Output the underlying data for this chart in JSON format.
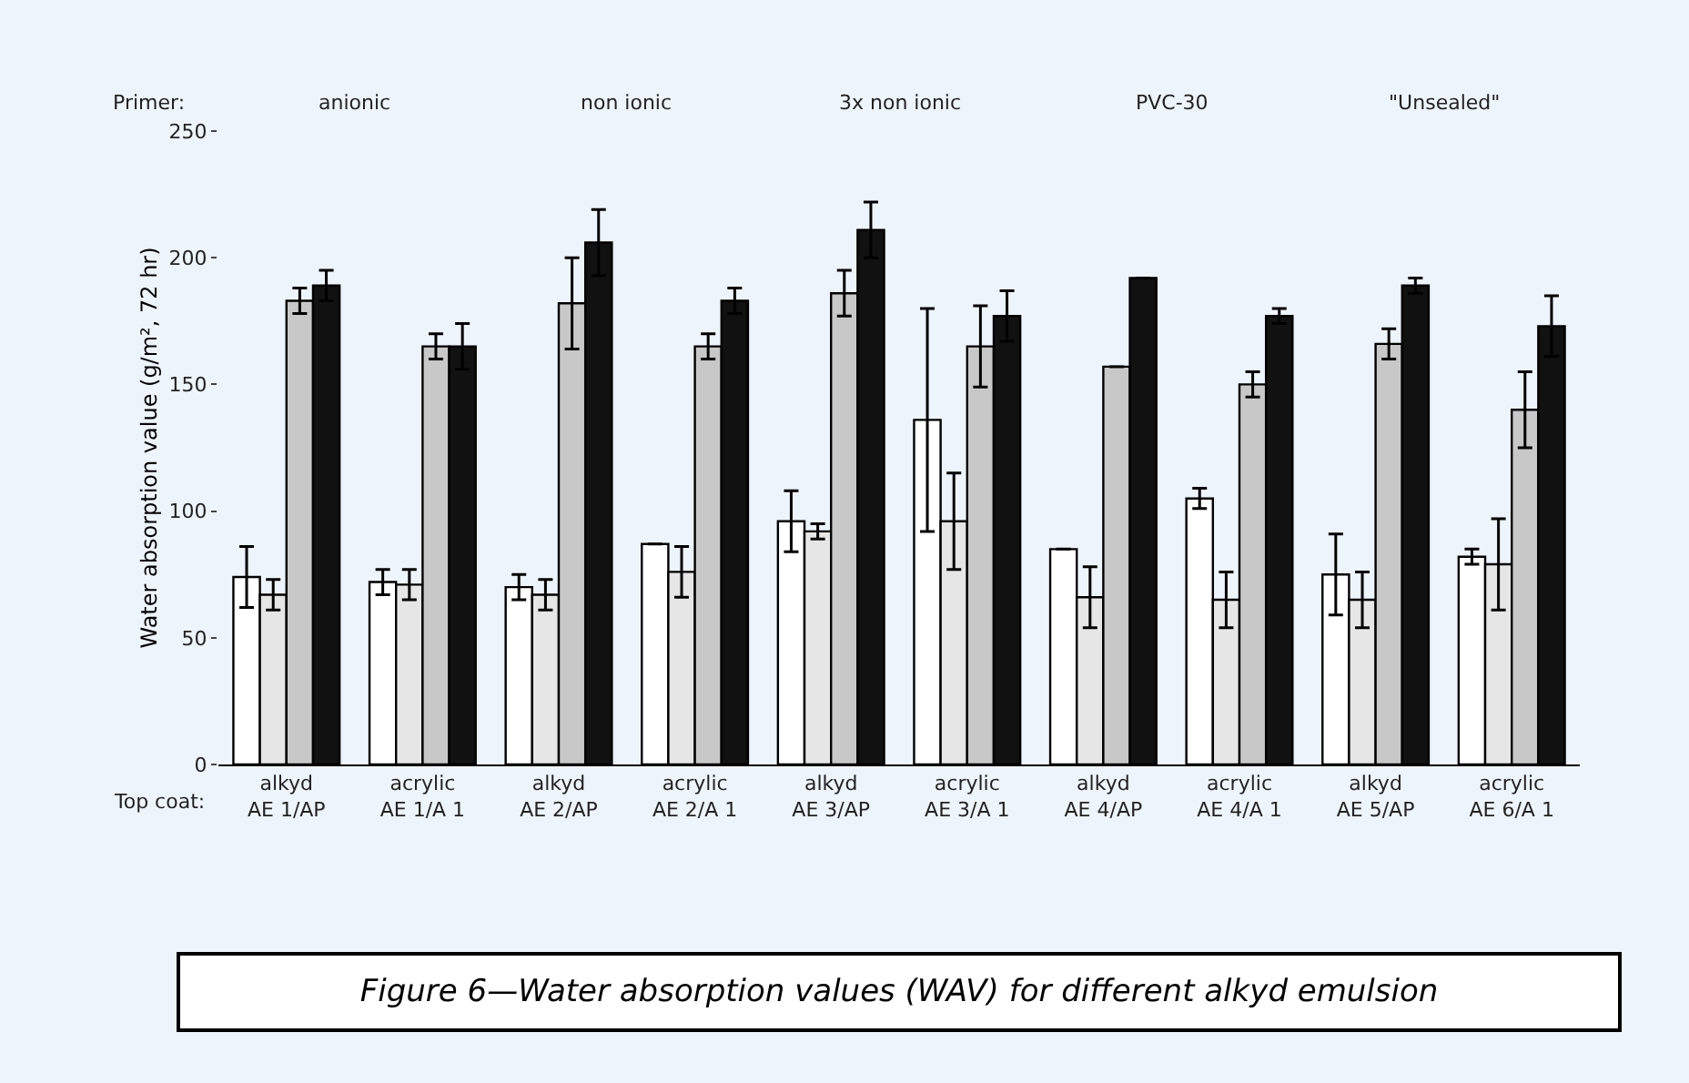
{
  "chart_data": {
    "type": "bar",
    "ylabel": "Water absorption value (g/m², 72 hr)",
    "categories": [
      "alkyd\nAE 1/AP",
      "acrylic\nAE 1/A 1",
      "alkyd\nAE 2/AP",
      "acrylic\nAE 2/A 1",
      "alkyd\nAE 3/AP",
      "acrylic\nAE 3/A 1",
      "alkyd\nAE 4/AP",
      "acrylic\nAE 4/A 1",
      "alkyd\nAE 5/AP",
      "acrylic\nAE 6/A 1"
    ],
    "series": [
      {
        "color": "#ffffff",
        "values": [
          74,
          72,
          70,
          87,
          96,
          136,
          85,
          105,
          75,
          82
        ],
        "errors": [
          12,
          5,
          5,
          null,
          12,
          44,
          null,
          4,
          16,
          3
        ]
      },
      {
        "color": "#e6e6e6",
        "values": [
          67,
          71,
          67,
          76,
          92,
          96,
          66,
          65,
          65,
          79
        ],
        "errors": [
          6,
          6,
          6,
          10,
          3,
          19,
          12,
          11,
          11,
          18
        ]
      },
      {
        "color": "#c8c8c8",
        "values": [
          183,
          165,
          182,
          165,
          186,
          165,
          157,
          150,
          166,
          140
        ],
        "errors": [
          5,
          5,
          18,
          5,
          9,
          16,
          null,
          5,
          6,
          15
        ]
      },
      {
        "color": "#111111",
        "values": [
          189,
          165,
          206,
          183,
          211,
          177,
          192,
          177,
          189,
          173
        ],
        "errors": [
          6,
          9,
          13,
          5,
          11,
          10,
          null,
          3,
          3,
          12
        ]
      }
    ],
    "ylim": [
      0,
      250
    ],
    "yticks": [
      0,
      50,
      100,
      150,
      200,
      250
    ],
    "grid": false,
    "annotations": [
      "Primer:",
      "anionic",
      "non ionic",
      "3x non ionic",
      "PVC-30",
      "\"Unsealed\"",
      "Top coat:",
      "Figure 6—Water absorption values (WAV) for different alkyd emulsion"
    ]
  }
}
